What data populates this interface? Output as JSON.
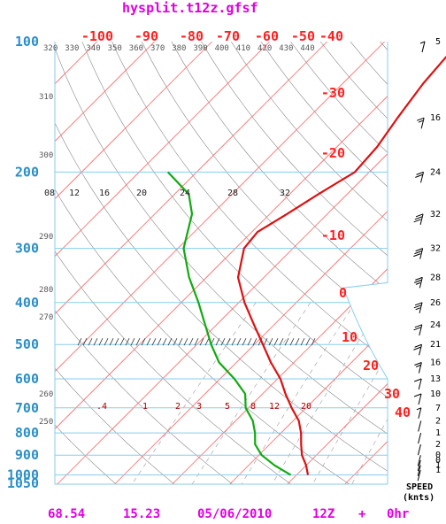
{
  "title": "hysplit.t12z.gfsf",
  "footer": {
    "lat": "68.54",
    "lon": "15.23",
    "date": "05/06/2010",
    "cycle": "12Z",
    "plus": "+",
    "fcst": "0hr"
  },
  "wind_header": [
    "SPEED",
    "(knts)"
  ],
  "colors": {
    "temperature": "#dd1111",
    "dewpoint": "#11aa11",
    "isotherm": "#ff6666",
    "isobar": "#87ceeb",
    "title": "#e000e0",
    "pressure_label": "#2a8fc8"
  },
  "chart_data": {
    "type": "line",
    "diagram": "skew-t",
    "pressure_levels": [
      100,
      200,
      300,
      400,
      500,
      600,
      700,
      800,
      900,
      1000,
      1050
    ],
    "pressure_labels": [
      "100",
      "200",
      "300",
      "400",
      "500",
      "600",
      "700",
      "800",
      "900",
      "1000",
      "1050"
    ],
    "top_temp_labels": [
      "-100",
      "-90",
      "-80",
      "-70",
      "-60",
      "-50",
      "-40"
    ],
    "right_temp_labels": [
      "-30",
      "-20",
      "-10",
      "0",
      "10",
      "20",
      "30",
      "40"
    ],
    "theta_top_labels": [
      "320",
      "330",
      "340",
      "350",
      "360",
      "370",
      "380",
      "390",
      "400",
      "410",
      "420",
      "430",
      "440"
    ],
    "theta_left_labels": [
      "310",
      "300",
      "290",
      "280",
      "270",
      "260",
      "250"
    ],
    "mixing_labels_upper": [
      "08",
      "12",
      "16",
      "20",
      "24",
      "28",
      "32"
    ],
    "mixing_labels_lower": [
      ".4",
      "1",
      "2",
      "3",
      "5",
      "8",
      "12",
      "20"
    ],
    "temperature": [
      {
        "p": 1000,
        "t": 2.0
      },
      {
        "p": 950,
        "t": 0.0
      },
      {
        "p": 900,
        "t": -2.5
      },
      {
        "p": 850,
        "t": -4.5
      },
      {
        "p": 800,
        "t": -6.5
      },
      {
        "p": 750,
        "t": -9.0
      },
      {
        "p": 700,
        "t": -12.5
      },
      {
        "p": 650,
        "t": -16.0
      },
      {
        "p": 600,
        "t": -19.5
      },
      {
        "p": 550,
        "t": -24.0
      },
      {
        "p": 500,
        "t": -28.5
      },
      {
        "p": 450,
        "t": -33.5
      },
      {
        "p": 400,
        "t": -39.0
      },
      {
        "p": 350,
        "t": -44.5
      },
      {
        "p": 300,
        "t": -48.5
      },
      {
        "p": 275,
        "t": -49.0
      },
      {
        "p": 250,
        "t": -47.0
      },
      {
        "p": 225,
        "t": -45.0
      },
      {
        "p": 200,
        "t": -42.5
      },
      {
        "p": 175,
        "t": -43.0
      },
      {
        "p": 150,
        "t": -44.5
      },
      {
        "p": 125,
        "t": -46.0
      },
      {
        "p": 100,
        "t": -47.0
      }
    ],
    "dewpoint": [
      {
        "p": 1000,
        "t": -1.0
      },
      {
        "p": 950,
        "t": -5.5
      },
      {
        "p": 900,
        "t": -9.5
      },
      {
        "p": 850,
        "t": -12.5
      },
      {
        "p": 800,
        "t": -14.5
      },
      {
        "p": 750,
        "t": -17.0
      },
      {
        "p": 700,
        "t": -20.5
      },
      {
        "p": 650,
        "t": -23.0
      },
      {
        "p": 600,
        "t": -27.5
      },
      {
        "p": 550,
        "t": -33.0
      },
      {
        "p": 500,
        "t": -37.5
      },
      {
        "p": 450,
        "t": -42.0
      },
      {
        "p": 400,
        "t": -47.0
      },
      {
        "p": 350,
        "t": -53.0
      },
      {
        "p": 300,
        "t": -59.0
      },
      {
        "p": 250,
        "t": -63.5
      },
      {
        "p": 225,
        "t": -67.5
      },
      {
        "p": 200,
        "t": -75.0
      }
    ],
    "wind_speeds": [
      {
        "p": 100,
        "speed": "5"
      },
      {
        "p": 150,
        "speed": "16"
      },
      {
        "p": 200,
        "speed": "24"
      },
      {
        "p": 250,
        "speed": "32"
      },
      {
        "p": 300,
        "speed": "32"
      },
      {
        "p": 350,
        "speed": "28"
      },
      {
        "p": 400,
        "speed": "26"
      },
      {
        "p": 450,
        "speed": "24"
      },
      {
        "p": 500,
        "speed": "21"
      },
      {
        "p": 550,
        "speed": "16"
      },
      {
        "p": 600,
        "speed": "13"
      },
      {
        "p": 650,
        "speed": "10"
      },
      {
        "p": 700,
        "speed": "7"
      },
      {
        "p": 750,
        "speed": "2"
      },
      {
        "p": 800,
        "speed": "1"
      },
      {
        "p": 850,
        "speed": "2"
      },
      {
        "p": 900,
        "speed": "0"
      },
      {
        "p": 925,
        "speed": "0"
      },
      {
        "p": 950,
        "speed": "1"
      },
      {
        "p": 975,
        "speed": "1"
      }
    ]
  }
}
